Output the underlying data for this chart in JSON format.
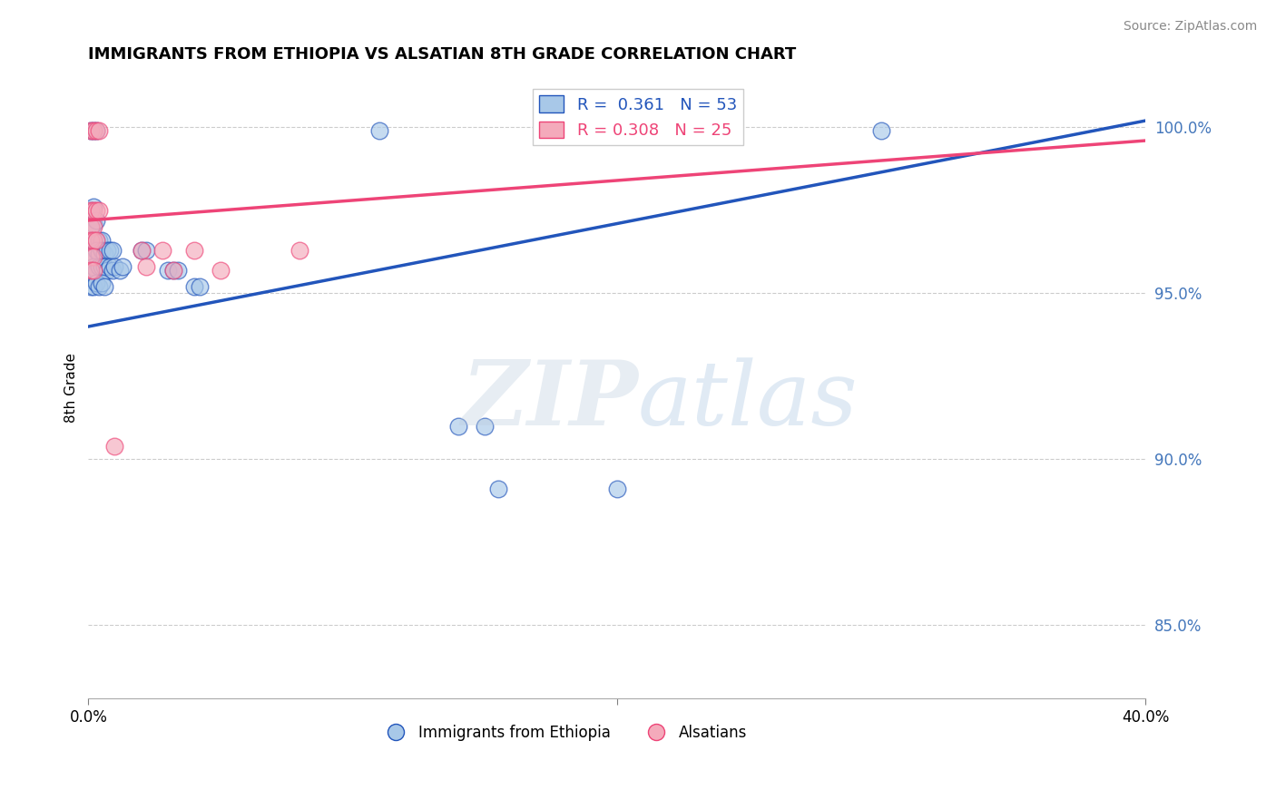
{
  "title": "IMMIGRANTS FROM ETHIOPIA VS ALSATIAN 8TH GRADE CORRELATION CHART",
  "source": "Source: ZipAtlas.com",
  "ylabel": "8th Grade",
  "x_range": [
    0.0,
    0.4
  ],
  "y_range": [
    0.828,
    1.015
  ],
  "blue_R": 0.361,
  "blue_N": 53,
  "pink_R": 0.308,
  "pink_N": 25,
  "blue_color": "#A8C8E8",
  "pink_color": "#F4AABB",
  "blue_line_color": "#2255BB",
  "pink_line_color": "#EE4477",
  "blue_points": [
    [
      0.001,
      0.999
    ],
    [
      0.002,
      0.999
    ],
    [
      0.003,
      0.999
    ],
    [
      0.001,
      0.975
    ],
    [
      0.002,
      0.976
    ],
    [
      0.001,
      0.97
    ],
    [
      0.002,
      0.971
    ],
    [
      0.003,
      0.972
    ],
    [
      0.001,
      0.966
    ],
    [
      0.002,
      0.966
    ],
    [
      0.003,
      0.966
    ],
    [
      0.004,
      0.966
    ],
    [
      0.005,
      0.966
    ],
    [
      0.001,
      0.961
    ],
    [
      0.002,
      0.962
    ],
    [
      0.003,
      0.963
    ],
    [
      0.004,
      0.962
    ],
    [
      0.005,
      0.963
    ],
    [
      0.006,
      0.962
    ],
    [
      0.007,
      0.963
    ],
    [
      0.008,
      0.963
    ],
    [
      0.009,
      0.963
    ],
    [
      0.001,
      0.957
    ],
    [
      0.002,
      0.958
    ],
    [
      0.003,
      0.957
    ],
    [
      0.004,
      0.958
    ],
    [
      0.005,
      0.958
    ],
    [
      0.006,
      0.958
    ],
    [
      0.007,
      0.957
    ],
    [
      0.008,
      0.958
    ],
    [
      0.009,
      0.957
    ],
    [
      0.01,
      0.958
    ],
    [
      0.012,
      0.957
    ],
    [
      0.013,
      0.958
    ],
    [
      0.001,
      0.952
    ],
    [
      0.002,
      0.952
    ],
    [
      0.003,
      0.953
    ],
    [
      0.004,
      0.952
    ],
    [
      0.005,
      0.953
    ],
    [
      0.006,
      0.952
    ],
    [
      0.02,
      0.963
    ],
    [
      0.022,
      0.963
    ],
    [
      0.03,
      0.957
    ],
    [
      0.032,
      0.957
    ],
    [
      0.034,
      0.957
    ],
    [
      0.04,
      0.952
    ],
    [
      0.042,
      0.952
    ],
    [
      0.11,
      0.999
    ],
    [
      0.14,
      0.91
    ],
    [
      0.15,
      0.91
    ],
    [
      0.155,
      0.891
    ],
    [
      0.2,
      0.891
    ],
    [
      0.3,
      0.999
    ]
  ],
  "pink_points": [
    [
      0.001,
      0.999
    ],
    [
      0.002,
      0.999
    ],
    [
      0.003,
      0.999
    ],
    [
      0.004,
      0.999
    ],
    [
      0.001,
      0.975
    ],
    [
      0.002,
      0.975
    ],
    [
      0.003,
      0.975
    ],
    [
      0.004,
      0.975
    ],
    [
      0.001,
      0.97
    ],
    [
      0.002,
      0.97
    ],
    [
      0.001,
      0.966
    ],
    [
      0.002,
      0.966
    ],
    [
      0.003,
      0.966
    ],
    [
      0.001,
      0.961
    ],
    [
      0.002,
      0.961
    ],
    [
      0.001,
      0.957
    ],
    [
      0.002,
      0.957
    ],
    [
      0.02,
      0.963
    ],
    [
      0.04,
      0.963
    ],
    [
      0.08,
      0.963
    ],
    [
      0.01,
      0.904
    ],
    [
      0.022,
      0.958
    ],
    [
      0.028,
      0.963
    ],
    [
      0.032,
      0.957
    ],
    [
      0.05,
      0.957
    ]
  ],
  "blue_line_x": [
    0.0,
    0.4
  ],
  "blue_line_y": [
    0.94,
    1.002
  ],
  "pink_line_x": [
    0.0,
    0.4
  ],
  "pink_line_y": [
    0.972,
    0.996
  ]
}
